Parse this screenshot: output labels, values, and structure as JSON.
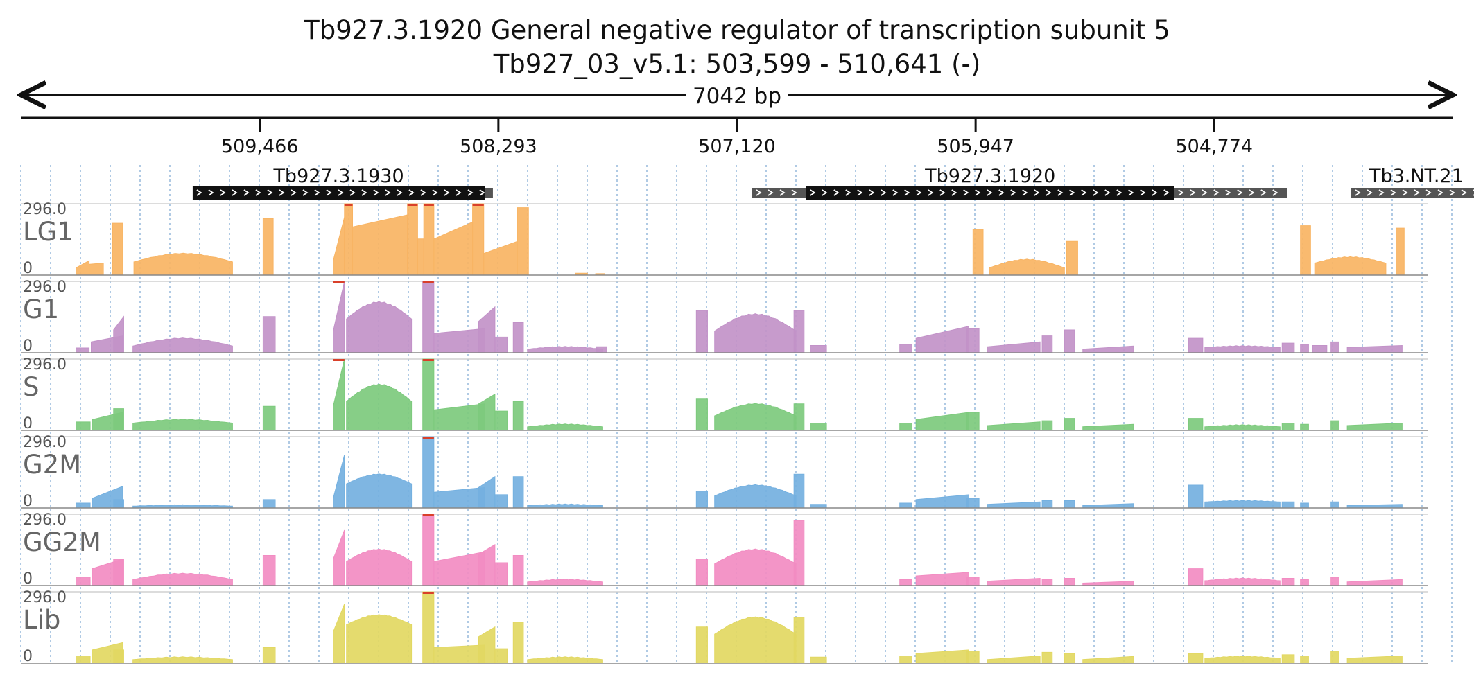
{
  "title": "Tb927.3.1920  General negative regulator of transcription subunit 5",
  "subtitle": "Tb927_03_v5.1: 503,599 - 510,641 (-)",
  "span_label": "7042 bp",
  "colors": {
    "LG1": "#f8b463",
    "G1": "#c292c8",
    "S": "#7dca7d",
    "G2M": "#74b0e0",
    "GG2M": "#f28cc2",
    "Lib": "#e2d862",
    "clip": "#d9402a",
    "grid": "#8fb4d9",
    "gene": "#111111",
    "utr": "#555555"
  },
  "chart_data": {
    "type": "area",
    "region": {
      "chrom": "Tb927_03_v5.1",
      "start": 503599,
      "end": 510641,
      "strand": "-",
      "length_bp": 7042
    },
    "x_axis": {
      "reversed": true,
      "ticks": [
        509466,
        508293,
        507120,
        505947,
        504774
      ],
      "tick_labels": [
        "509,466",
        "508,293",
        "507,120",
        "505,947",
        "504,774"
      ]
    },
    "genes": [
      {
        "name": "Tb927.3.1930",
        "cds": [
          509796,
          508360
        ],
        "utr": [
          [
            508360,
            508320
          ]
        ]
      },
      {
        "name": "Tb927.3.1920",
        "cds": [
          506780,
          504970
        ],
        "utr": [
          [
            507045,
            506780
          ],
          [
            504970,
            504415
          ]
        ]
      },
      {
        "name": "Tb3.NT.21",
        "cds": [],
        "utr": [
          [
            504100,
            503460
          ]
        ]
      }
    ],
    "y_max": 296.0,
    "y_labels": [
      "296.0",
      "0"
    ],
    "grid": "vertical dashed",
    "series": [
      {
        "name": "LG1",
        "blocks": [
          [
            510370,
            510305,
            30,
            60
          ],
          [
            510305,
            510235,
            45,
            50
          ],
          [
            510190,
            510140,
            215,
            215
          ],
          [
            510085,
            509600,
            55,
            90
          ],
          [
            509450,
            509400,
            235,
            235
          ],
          [
            509105,
            509050,
            60,
            240
          ],
          [
            509050,
            509010,
            296,
            296
          ],
          [
            509010,
            508740,
            200,
            250
          ],
          [
            508740,
            508690,
            296,
            296
          ],
          [
            508690,
            508660,
            150,
            150
          ],
          [
            508660,
            508610,
            296,
            296
          ],
          [
            508610,
            508420,
            150,
            220
          ],
          [
            508420,
            508365,
            296,
            296
          ],
          [
            508365,
            508200,
            90,
            140
          ],
          [
            508200,
            508145,
            280,
            280
          ],
          [
            507915,
            507855,
            8,
            8
          ],
          [
            507815,
            507770,
            6,
            6
          ],
          [
            505960,
            505910,
            190,
            190
          ],
          [
            505880,
            505510,
            30,
            65
          ],
          [
            505500,
            505445,
            140,
            140
          ],
          [
            504350,
            504300,
            205,
            205
          ],
          [
            504280,
            503930,
            50,
            75
          ],
          [
            503880,
            503840,
            195,
            195
          ]
        ]
      },
      {
        "name": "G1",
        "blocks": [
          [
            510370,
            510305,
            20,
            20
          ],
          [
            510295,
            510140,
            45,
            70
          ],
          [
            510185,
            510135,
            95,
            150
          ],
          [
            510090,
            509600,
            28,
            60
          ],
          [
            509450,
            509390,
            150,
            150
          ],
          [
            509105,
            509050,
            90,
            296
          ],
          [
            509040,
            508720,
            140,
            210
          ],
          [
            508665,
            508610,
            296,
            296
          ],
          [
            508610,
            508360,
            80,
            100
          ],
          [
            508390,
            508310,
            130,
            190
          ],
          [
            508310,
            508250,
            65,
            65
          ],
          [
            508220,
            508170,
            125,
            125
          ],
          [
            508150,
            507780,
            15,
            25
          ],
          [
            507810,
            507760,
            25,
            25
          ],
          [
            507320,
            507265,
            175,
            175
          ],
          [
            507230,
            506830,
            90,
            160
          ],
          [
            506840,
            506790,
            175,
            175
          ],
          [
            506760,
            506680,
            30,
            30
          ],
          [
            506320,
            506260,
            35,
            35
          ],
          [
            506240,
            505980,
            60,
            110
          ],
          [
            505990,
            505930,
            100,
            100
          ],
          [
            505890,
            505630,
            25,
            45
          ],
          [
            505620,
            505570,
            70,
            70
          ],
          [
            505510,
            505460,
            95,
            95
          ],
          [
            505420,
            505170,
            15,
            28
          ],
          [
            504900,
            504830,
            60,
            60
          ],
          [
            504820,
            504450,
            22,
            28
          ],
          [
            504440,
            504380,
            40,
            40
          ],
          [
            504350,
            504310,
            35,
            35
          ],
          [
            504290,
            504220,
            30,
            30
          ],
          [
            504200,
            504160,
            45,
            45
          ],
          [
            504120,
            503850,
            22,
            30
          ]
        ]
      },
      {
        "name": "S",
        "blocks": [
          [
            510370,
            510300,
            35,
            35
          ],
          [
            510290,
            510140,
            45,
            75
          ],
          [
            510185,
            510135,
            90,
            90
          ],
          [
            510090,
            509600,
            30,
            45
          ],
          [
            509450,
            509390,
            100,
            100
          ],
          [
            509105,
            509050,
            100,
            296
          ],
          [
            509040,
            508720,
            120,
            190
          ],
          [
            508665,
            508610,
            296,
            296
          ],
          [
            508610,
            508360,
            85,
            110
          ],
          [
            508390,
            508310,
            110,
            150
          ],
          [
            508310,
            508250,
            80,
            80
          ],
          [
            508220,
            508170,
            120,
            120
          ],
          [
            508150,
            507780,
            15,
            25
          ],
          [
            507320,
            507265,
            130,
            130
          ],
          [
            507230,
            506830,
            60,
            110
          ],
          [
            506840,
            506790,
            110,
            110
          ],
          [
            506760,
            506680,
            30,
            30
          ],
          [
            506320,
            506260,
            30,
            30
          ],
          [
            506240,
            505980,
            45,
            75
          ],
          [
            505990,
            505930,
            75,
            75
          ],
          [
            505890,
            505630,
            20,
            35
          ],
          [
            505620,
            505570,
            40,
            40
          ],
          [
            505510,
            505460,
            50,
            50
          ],
          [
            505420,
            505170,
            15,
            25
          ],
          [
            504900,
            504830,
            50,
            50
          ],
          [
            504820,
            504450,
            15,
            22
          ],
          [
            504440,
            504380,
            30,
            30
          ],
          [
            504350,
            504310,
            25,
            25
          ],
          [
            504200,
            504160,
            40,
            40
          ],
          [
            504120,
            503850,
            20,
            30
          ]
        ]
      },
      {
        "name": "G2M",
        "blocks": [
          [
            510370,
            510300,
            20,
            20
          ],
          [
            510290,
            510140,
            40,
            90
          ],
          [
            510185,
            510135,
            35,
            35
          ],
          [
            510090,
            509600,
            8,
            12
          ],
          [
            509450,
            509390,
            35,
            35
          ],
          [
            509105,
            509050,
            40,
            220
          ],
          [
            509040,
            508720,
            100,
            140
          ],
          [
            508665,
            508610,
            296,
            296
          ],
          [
            508610,
            508360,
            65,
            85
          ],
          [
            508390,
            508310,
            85,
            130
          ],
          [
            508310,
            508250,
            55,
            55
          ],
          [
            508220,
            508170,
            130,
            130
          ],
          [
            508150,
            507780,
            10,
            15
          ],
          [
            507320,
            507265,
            70,
            70
          ],
          [
            507230,
            506830,
            50,
            95
          ],
          [
            506840,
            506790,
            140,
            140
          ],
          [
            506760,
            506680,
            15,
            15
          ],
          [
            506320,
            506260,
            20,
            20
          ],
          [
            506240,
            505980,
            35,
            55
          ],
          [
            505990,
            505930,
            40,
            40
          ],
          [
            505890,
            505630,
            15,
            25
          ],
          [
            505620,
            505570,
            30,
            30
          ],
          [
            505510,
            505460,
            30,
            30
          ],
          [
            505420,
            505170,
            10,
            18
          ],
          [
            504900,
            504830,
            95,
            95
          ],
          [
            504820,
            504450,
            25,
            30
          ],
          [
            504440,
            504380,
            25,
            25
          ],
          [
            504350,
            504310,
            20,
            20
          ],
          [
            504200,
            504160,
            25,
            25
          ],
          [
            504120,
            503850,
            10,
            15
          ]
        ]
      },
      {
        "name": "GG2M",
        "blocks": [
          [
            510370,
            510300,
            35,
            35
          ],
          [
            510290,
            510140,
            70,
            110
          ],
          [
            510185,
            510135,
            110,
            110
          ],
          [
            510090,
            509600,
            25,
            50
          ],
          [
            509450,
            509390,
            125,
            125
          ],
          [
            509105,
            509050,
            110,
            230
          ],
          [
            509040,
            508720,
            100,
            150
          ],
          [
            508665,
            508610,
            296,
            296
          ],
          [
            508610,
            508360,
            100,
            140
          ],
          [
            508390,
            508310,
            130,
            170
          ],
          [
            508310,
            508250,
            95,
            95
          ],
          [
            508220,
            508170,
            125,
            125
          ],
          [
            508150,
            507780,
            15,
            25
          ],
          [
            507320,
            507265,
            110,
            110
          ],
          [
            507230,
            506830,
            90,
            150
          ],
          [
            506840,
            506790,
            270,
            270
          ],
          [
            506320,
            506260,
            25,
            25
          ],
          [
            506240,
            505980,
            40,
            55
          ],
          [
            505990,
            505930,
            35,
            35
          ],
          [
            505890,
            505630,
            18,
            30
          ],
          [
            505620,
            505570,
            25,
            25
          ],
          [
            505510,
            505460,
            30,
            30
          ],
          [
            505420,
            505170,
            10,
            18
          ],
          [
            504900,
            504830,
            70,
            70
          ],
          [
            504820,
            504450,
            20,
            30
          ],
          [
            504440,
            504380,
            30,
            30
          ],
          [
            504350,
            504310,
            25,
            25
          ],
          [
            504200,
            504160,
            35,
            35
          ],
          [
            504120,
            503850,
            15,
            25
          ]
        ]
      },
      {
        "name": "Lib",
        "blocks": [
          [
            510370,
            510300,
            30,
            30
          ],
          [
            510290,
            510140,
            55,
            85
          ],
          [
            510185,
            510135,
            55,
            55
          ],
          [
            510090,
            509600,
            15,
            25
          ],
          [
            509450,
            509390,
            65,
            65
          ],
          [
            509105,
            509050,
            130,
            245
          ],
          [
            509040,
            508720,
            160,
            200
          ],
          [
            508665,
            508610,
            296,
            296
          ],
          [
            508610,
            508360,
            65,
            75
          ],
          [
            508390,
            508310,
            110,
            150
          ],
          [
            508310,
            508250,
            60,
            60
          ],
          [
            508220,
            508170,
            170,
            170
          ],
          [
            508150,
            507780,
            15,
            25
          ],
          [
            507320,
            507265,
            150,
            150
          ],
          [
            507230,
            506830,
            120,
            190
          ],
          [
            506840,
            506790,
            190,
            190
          ],
          [
            506760,
            506680,
            25,
            25
          ],
          [
            506320,
            506260,
            30,
            30
          ],
          [
            506240,
            505980,
            40,
            55
          ],
          [
            505990,
            505930,
            50,
            50
          ],
          [
            505890,
            505630,
            15,
            30
          ],
          [
            505620,
            505570,
            45,
            45
          ],
          [
            505510,
            505460,
            40,
            40
          ],
          [
            505420,
            505170,
            15,
            28
          ],
          [
            504900,
            504830,
            40,
            40
          ],
          [
            504820,
            504450,
            20,
            28
          ],
          [
            504440,
            504380,
            35,
            35
          ],
          [
            504350,
            504310,
            30,
            30
          ],
          [
            504200,
            504160,
            50,
            50
          ],
          [
            504120,
            503850,
            20,
            30
          ]
        ]
      }
    ]
  }
}
